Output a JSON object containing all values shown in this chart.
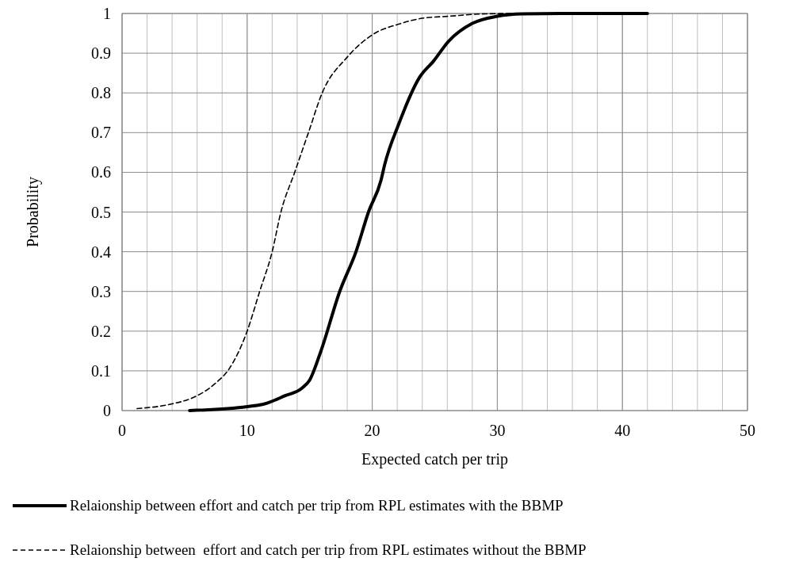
{
  "chart_data": {
    "type": "line",
    "xlabel": "Expected catch per trip",
    "ylabel": "Probability",
    "xlim": [
      0,
      50
    ],
    "xticks": [
      0,
      10,
      20,
      30,
      40,
      50
    ],
    "ylim": [
      0,
      1
    ],
    "yticks": [
      0,
      0.1,
      0.2,
      0.3,
      0.4,
      0.5,
      0.6,
      0.7,
      0.8,
      0.9,
      1
    ],
    "grid": true,
    "legend": "bottom",
    "series": [
      {
        "name": "Relaionship between effort and catch per trip from RPL estimates with the BBMP",
        "color": "#000000",
        "line_style": "solid",
        "x": [
          5.4,
          10,
          11.4,
          13,
          14.4,
          15,
          15.9,
          17.4,
          18.7,
          19.7,
          20.7,
          21,
          22.1,
          23.8,
          24.9,
          26.1,
          28,
          30,
          32,
          35,
          42
        ],
        "values": [
          0,
          0.01,
          0.017,
          0.037,
          0.057,
          0.077,
          0.15,
          0.3,
          0.4,
          0.5,
          0.58,
          0.62,
          0.72,
          0.84,
          0.88,
          0.93,
          0.975,
          0.993,
          0.999,
          1,
          1
        ]
      },
      {
        "name": "Relaionship between  effort and catch per trip from RPL estimates without the BBMP",
        "color": "#000000",
        "line_style": "dashed",
        "x": [
          1.2,
          4,
          5.7,
          7.4,
          8.6,
          10,
          11,
          12,
          12.7,
          13.8,
          14.9,
          16,
          18,
          20.2,
          22.1,
          24,
          26.1,
          29,
          32,
          34
        ],
        "values": [
          0.005,
          0.017,
          0.033,
          0.067,
          0.107,
          0.2,
          0.3,
          0.4,
          0.5,
          0.6,
          0.7,
          0.8,
          0.89,
          0.95,
          0.973,
          0.988,
          0.993,
          0.999,
          1,
          1
        ]
      }
    ]
  }
}
